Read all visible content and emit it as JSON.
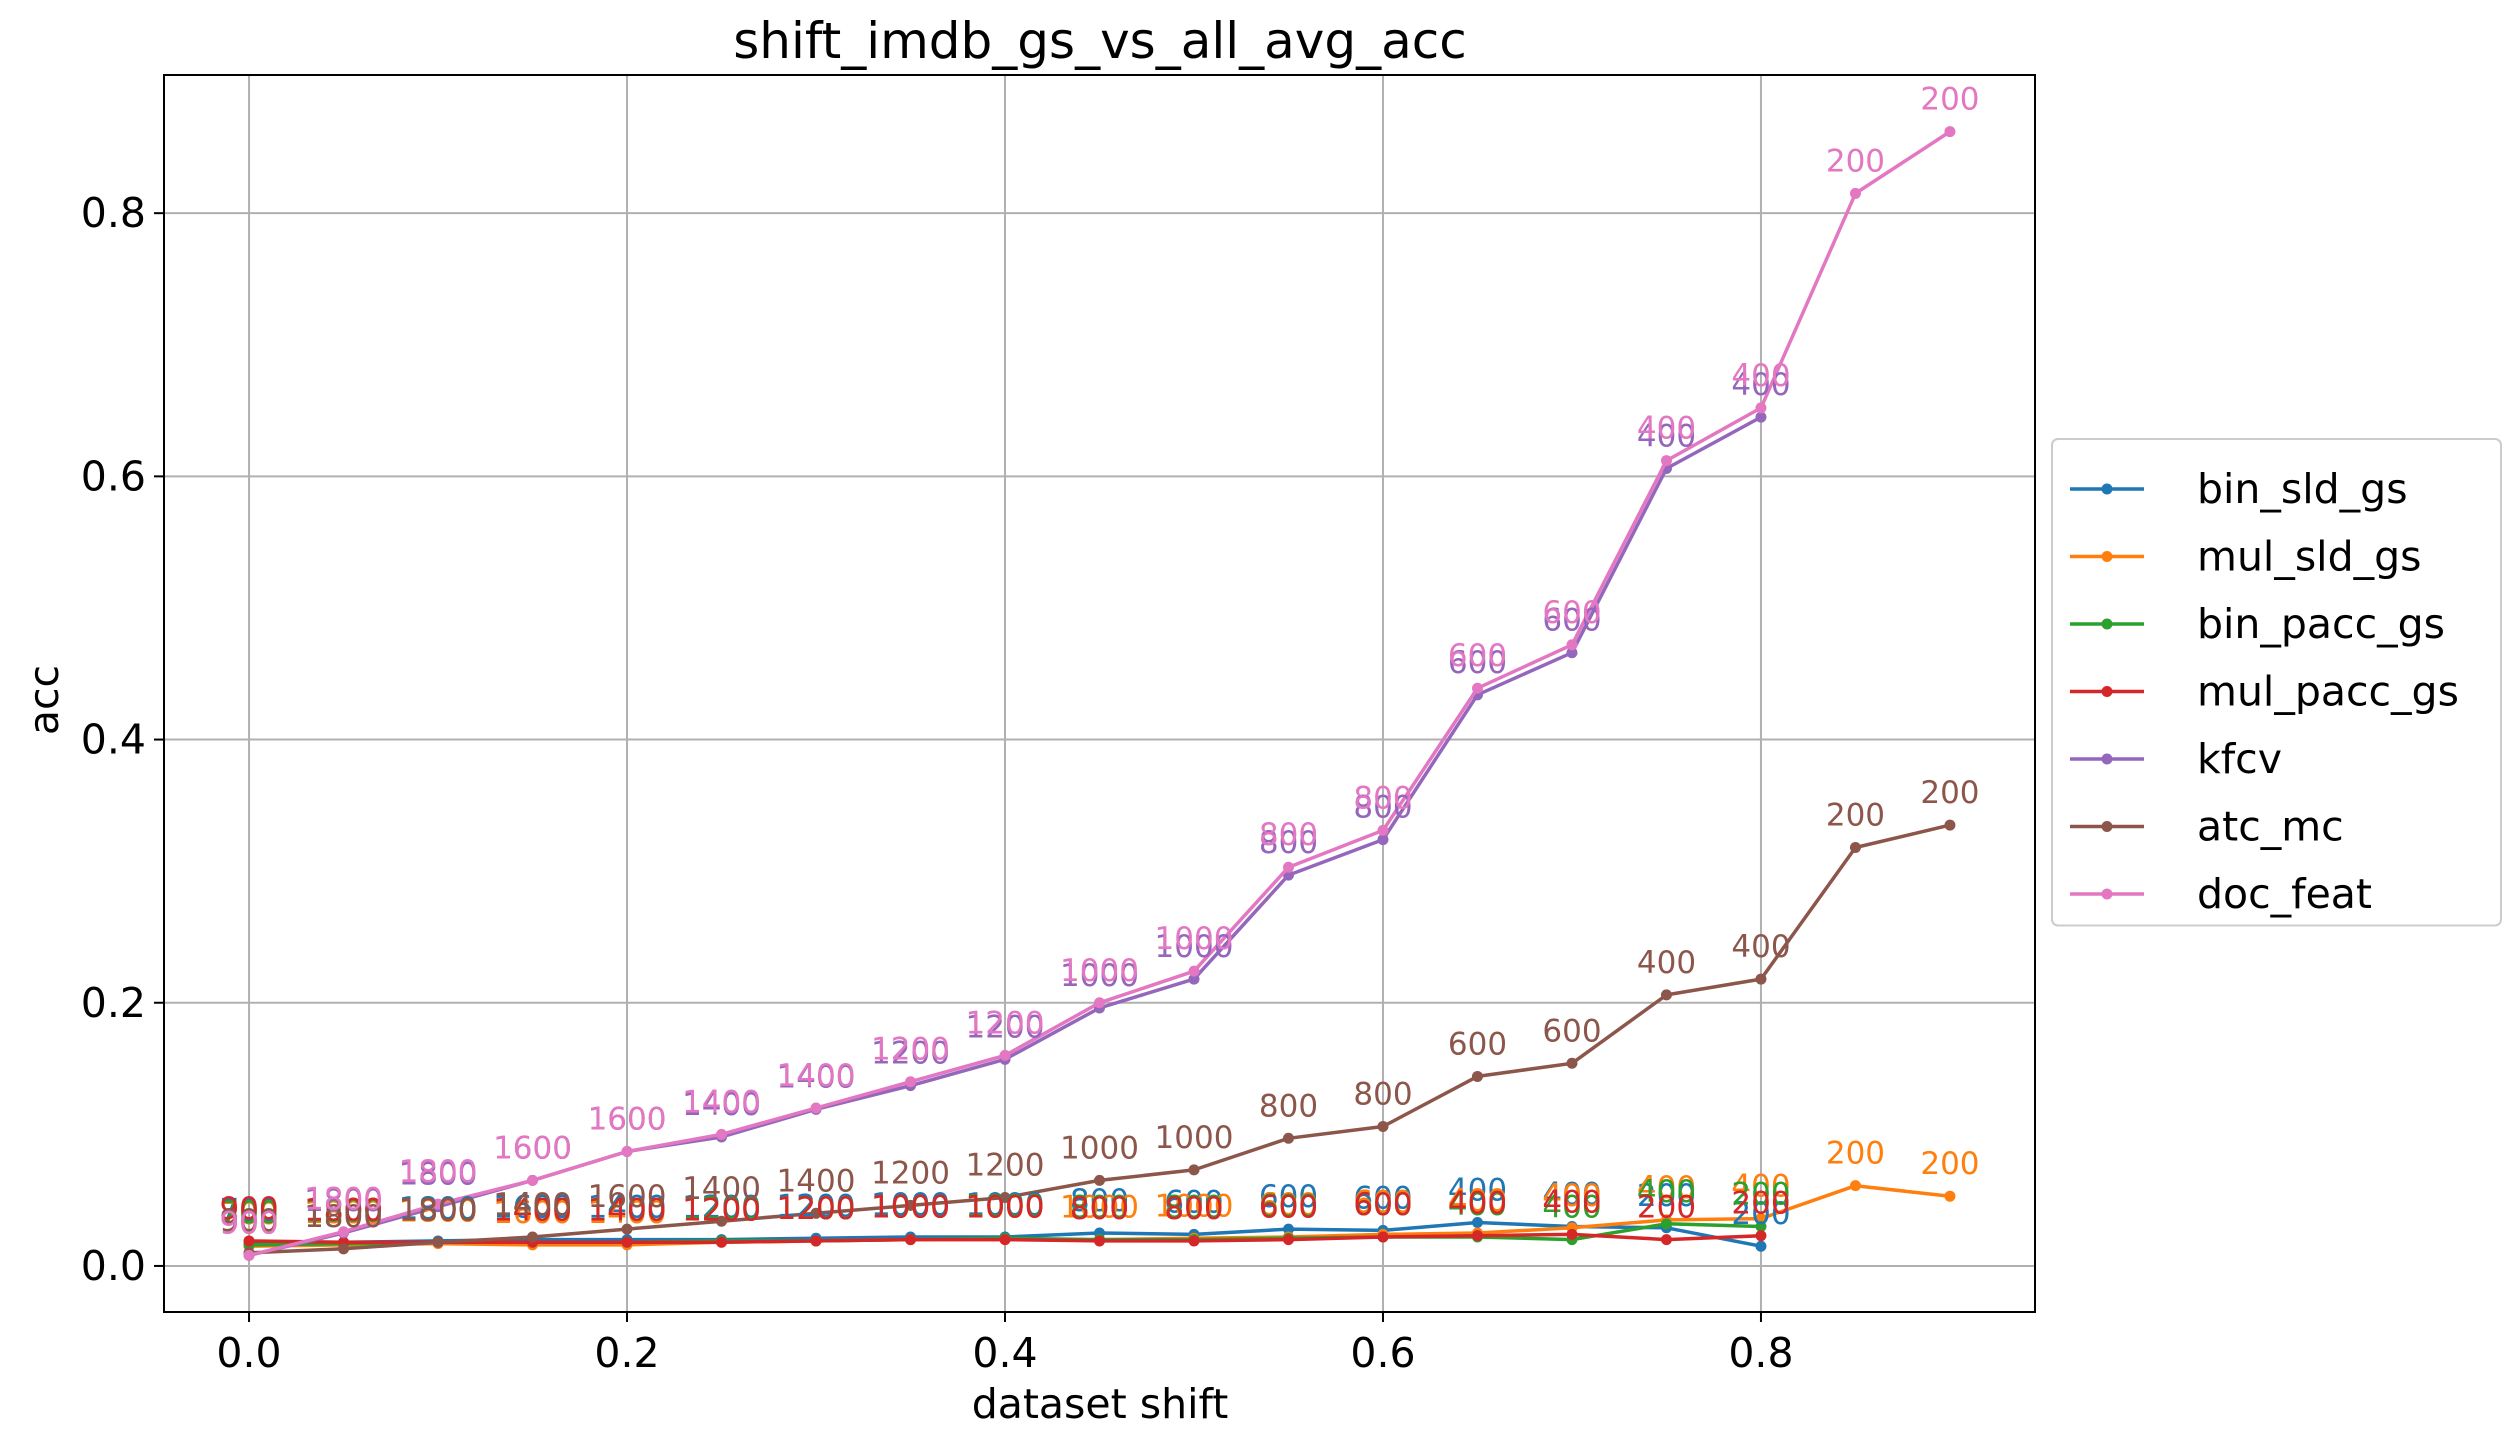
{
  "chart_data": {
    "type": "line",
    "title": "shift_imdb_gs_vs_all_avg_acc",
    "xlabel": "dataset shift",
    "ylabel": "acc",
    "xlim": [
      -0.045,
      0.945
    ],
    "ylim": [
      -0.035,
      0.905
    ],
    "xticks": [
      0.0,
      0.2,
      0.4,
      0.6,
      0.8
    ],
    "xtick_labels": [
      "0.0",
      "0.2",
      "0.4",
      "0.6",
      "0.8"
    ],
    "yticks": [
      0.0,
      0.2,
      0.4,
      0.6,
      0.8
    ],
    "ytick_labels": [
      "0.0",
      "0.2",
      "0.4",
      "0.6",
      "0.8"
    ],
    "grid": true,
    "legend_position": "outside-right",
    "series": [
      {
        "name": "bin_sld_gs",
        "color": "#1f77b4",
        "x": [
          0.0,
          0.05,
          0.1,
          0.15,
          0.2,
          0.25,
          0.3,
          0.35,
          0.4,
          0.45,
          0.5,
          0.55,
          0.6,
          0.65,
          0.7,
          0.75,
          0.8
        ],
        "y": [
          0.018,
          0.018,
          0.019,
          0.02,
          0.02,
          0.02,
          0.021,
          0.022,
          0.022,
          0.025,
          0.024,
          0.028,
          0.027,
          0.033,
          0.03,
          0.029,
          0.015
        ],
        "labels": [
          "700",
          "1800",
          "1800",
          "1600",
          "1400",
          "1200",
          "1200",
          "1000",
          "1000",
          "800",
          "600",
          "600",
          "600",
          "400",
          "400",
          "200",
          "200"
        ]
      },
      {
        "name": "mul_sld_gs",
        "color": "#ff7f0e",
        "x": [
          0.0,
          0.05,
          0.1,
          0.15,
          0.2,
          0.25,
          0.3,
          0.35,
          0.4,
          0.45,
          0.5,
          0.55,
          0.6,
          0.65,
          0.7,
          0.75,
          0.8,
          0.85,
          0.9
        ],
        "y": [
          0.015,
          0.016,
          0.017,
          0.016,
          0.016,
          0.018,
          0.019,
          0.02,
          0.02,
          0.02,
          0.021,
          0.022,
          0.024,
          0.025,
          0.029,
          0.035,
          0.036,
          0.061,
          0.053
        ],
        "labels": [
          "700",
          "1800",
          "1800",
          "1600",
          "1400",
          "1200",
          "1200",
          "1000",
          "1000",
          "1000",
          "1000",
          "600",
          "600",
          "400",
          "400",
          "400",
          "400",
          "200",
          "200"
        ]
      },
      {
        "name": "bin_pacc_gs",
        "color": "#2ca02c",
        "x": [
          0.0,
          0.05,
          0.1,
          0.15,
          0.2,
          0.25,
          0.3,
          0.35,
          0.4,
          0.45,
          0.5,
          0.55,
          0.6,
          0.65,
          0.7,
          0.75,
          0.8
        ],
        "y": [
          0.016,
          0.017,
          0.018,
          0.018,
          0.018,
          0.019,
          0.019,
          0.02,
          0.021,
          0.02,
          0.02,
          0.021,
          0.022,
          0.022,
          0.02,
          0.032,
          0.03
        ],
        "labels": [
          "700",
          "1800",
          "1800",
          "1400",
          "1400",
          "1200",
          "1200",
          "1000",
          "1000",
          "800",
          "800",
          "600",
          "600",
          "400",
          "400",
          "400",
          "200"
        ]
      },
      {
        "name": "mul_pacc_gs",
        "color": "#d62728",
        "x": [
          0.0,
          0.05,
          0.1,
          0.15,
          0.2,
          0.25,
          0.3,
          0.35,
          0.4,
          0.45,
          0.5,
          0.55,
          0.6,
          0.65,
          0.7,
          0.75,
          0.8
        ],
        "y": [
          0.019,
          0.018,
          0.018,
          0.018,
          0.018,
          0.018,
          0.019,
          0.02,
          0.02,
          0.019,
          0.019,
          0.02,
          0.022,
          0.023,
          0.024,
          0.02,
          0.023
        ],
        "labels": [
          "900",
          "1800",
          "1800",
          "1400",
          "1400",
          "1200",
          "1200",
          "1000",
          "1000",
          "800",
          "800",
          "600",
          "600",
          "400",
          "400",
          "200",
          "200"
        ]
      },
      {
        "name": "kfcv",
        "color": "#9467bd",
        "x": [
          0.0,
          0.05,
          0.1,
          0.15,
          0.2,
          0.25,
          0.3,
          0.35,
          0.4,
          0.45,
          0.5,
          0.55,
          0.6,
          0.65,
          0.7,
          0.75,
          0.8
        ],
        "y": [
          0.008,
          0.025,
          0.045,
          0.065,
          0.087,
          0.098,
          0.119,
          0.137,
          0.157,
          0.196,
          0.218,
          0.297,
          0.324,
          0.434,
          0.466,
          0.606,
          0.645
        ],
        "labels": [
          "900",
          "1800",
          "1800",
          "1600",
          "1600",
          "1400",
          "1400",
          "1200",
          "1200",
          "1000",
          "1000",
          "800",
          "800",
          "600",
          "600",
          "400",
          "400"
        ]
      },
      {
        "name": "atc_mc",
        "color": "#8c564b",
        "x": [
          0.0,
          0.05,
          0.1,
          0.15,
          0.2,
          0.25,
          0.3,
          0.35,
          0.4,
          0.45,
          0.5,
          0.55,
          0.6,
          0.65,
          0.7,
          0.75,
          0.8,
          0.85,
          0.9
        ],
        "y": [
          0.01,
          0.013,
          0.018,
          0.022,
          0.028,
          0.034,
          0.04,
          0.046,
          0.052,
          0.065,
          0.073,
          0.097,
          0.106,
          0.144,
          0.154,
          0.206,
          0.218,
          0.318,
          0.335
        ],
        "labels": [
          "900",
          "1800",
          "1800",
          "1400",
          "1600",
          "1400",
          "1400",
          "1200",
          "1200",
          "1000",
          "1000",
          "800",
          "800",
          "600",
          "600",
          "400",
          "400",
          "200",
          "200"
        ]
      },
      {
        "name": "doc_feat",
        "color": "#e377c2",
        "x": [
          0.0,
          0.05,
          0.1,
          0.15,
          0.2,
          0.25,
          0.3,
          0.35,
          0.4,
          0.45,
          0.5,
          0.55,
          0.6,
          0.65,
          0.7,
          0.75,
          0.8,
          0.85,
          0.9
        ],
        "y": [
          0.008,
          0.026,
          0.047,
          0.065,
          0.087,
          0.1,
          0.12,
          0.14,
          0.16,
          0.2,
          0.224,
          0.303,
          0.331,
          0.439,
          0.472,
          0.612,
          0.652,
          0.815,
          0.862
        ],
        "labels": [
          "900",
          "1800",
          "1800",
          "1600",
          "1600",
          "1400",
          "1400",
          "1200",
          "1200",
          "1000",
          "1000",
          "800",
          "800",
          "600",
          "600",
          "400",
          "400",
          "200",
          "200"
        ]
      }
    ]
  }
}
